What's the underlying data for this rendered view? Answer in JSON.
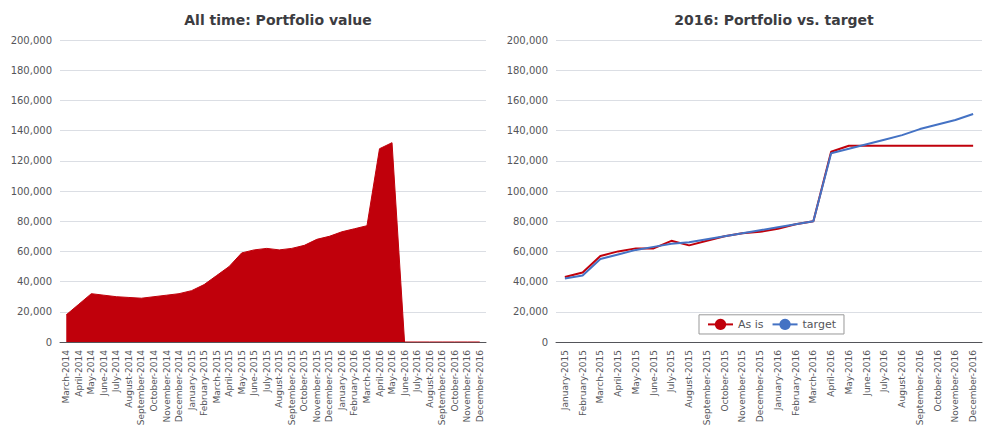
{
  "chart_data": [
    {
      "type": "area",
      "title": "All time: Portfolio value",
      "categories": [
        "March-2014",
        "April-2014",
        "May-2014",
        "June-2014",
        "July-2014",
        "August-2014",
        "September-2014",
        "October-2014",
        "November-2014",
        "December-2014",
        "January-2015",
        "February-2015",
        "March-2015",
        "April-2015",
        "May-2015",
        "June-2015",
        "July-2015",
        "August-2015",
        "September-2015",
        "October-2015",
        "November-2015",
        "December-2015",
        "January-2016",
        "February-2016",
        "March-2016",
        "April-2016",
        "May-2016",
        "June-2016",
        "July-2016",
        "August-2016",
        "September-2016",
        "October-2016",
        "November-2016",
        "December-2016"
      ],
      "values": [
        18000,
        25000,
        32000,
        31000,
        30000,
        29500,
        29000,
        30000,
        31000,
        32000,
        34000,
        38000,
        44000,
        50000,
        59000,
        61000,
        62000,
        61000,
        62000,
        64000,
        68000,
        70000,
        73000,
        75000,
        77000,
        128000,
        132000,
        0,
        0,
        0,
        0,
        0,
        0,
        0
      ],
      "color": "#c0000b",
      "ylim": [
        0,
        200000
      ],
      "yticks": [
        0,
        {
          "value": 20000,
          "label": "20,000"
        },
        {
          "value": 40000,
          "label": "40,000"
        },
        {
          "value": 60000,
          "label": "60,000"
        },
        {
          "value": 80000,
          "label": "80,000"
        },
        {
          "value": 100000,
          "label": "100,000"
        },
        {
          "value": 120000,
          "label": "120,000"
        },
        {
          "value": 140000,
          "label": "140,000"
        },
        {
          "value": 160000,
          "label": "160,000"
        },
        {
          "value": 180000,
          "label": "180,000"
        },
        {
          "value": 200000,
          "label": "200,000"
        }
      ],
      "grid": true
    },
    {
      "type": "line",
      "title": "2016: Portfolio vs. target",
      "categories": [
        "January-2015",
        "February-2015",
        "March-2015",
        "April-2015",
        "May-2015",
        "June-2015",
        "July-2015",
        "August-2015",
        "September-2015",
        "October-2015",
        "November-2015",
        "December-2015",
        "January-2016",
        "February-2016",
        "March-2016",
        "April-2016",
        "May-2016",
        "June-2016",
        "July-2016",
        "August-2016",
        "September-2016",
        "October-2016",
        "November-2016",
        "December-2016"
      ],
      "series": [
        {
          "name": "As is",
          "color": "#c0000b",
          "values": [
            43000,
            46000,
            57000,
            60000,
            62000,
            62000,
            67000,
            64000,
            67000,
            70000,
            72000,
            73000,
            75000,
            78000,
            80000,
            126000,
            130000,
            130000,
            130000,
            130000,
            130000,
            130000,
            130000,
            130000
          ]
        },
        {
          "name": "target",
          "color": "#4472c4",
          "values": [
            42000,
            44000,
            55000,
            58000,
            61000,
            63000,
            65000,
            66000,
            68000,
            70000,
            72000,
            74000,
            76000,
            78000,
            80000,
            125000,
            128000,
            131000,
            134000,
            137000,
            141000,
            144000,
            147000,
            151000
          ]
        }
      ],
      "ylim": [
        0,
        200000
      ],
      "yticks": [
        0,
        {
          "value": 20000,
          "label": "20,000"
        },
        {
          "value": 40000,
          "label": "40,000"
        },
        {
          "value": 60000,
          "label": "60,000"
        },
        {
          "value": 80000,
          "label": "80,000"
        },
        {
          "value": 100000,
          "label": "100,000"
        },
        {
          "value": 120000,
          "label": "120,000"
        },
        {
          "value": 140000,
          "label": "140,000"
        },
        {
          "value": 160000,
          "label": "160,000"
        },
        {
          "value": 180000,
          "label": "180,000"
        },
        {
          "value": 200000,
          "label": "200,000"
        }
      ],
      "grid": true,
      "legend": "bottom"
    }
  ]
}
